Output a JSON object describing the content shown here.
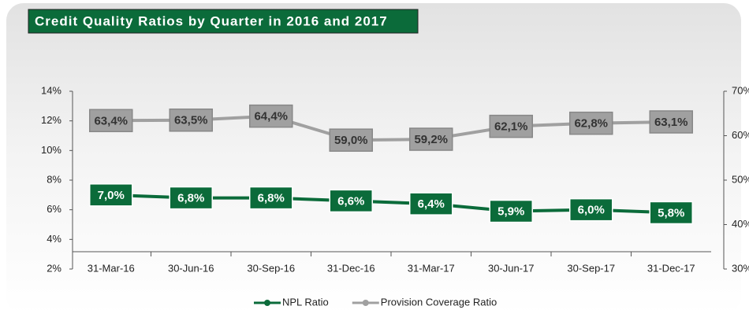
{
  "chart_data": {
    "type": "line",
    "title": "Credit Quality Ratios by Quarter in 2016 and 2017",
    "categories": [
      "31-Mar-16",
      "30-Jun-16",
      "30-Sep-16",
      "31-Dec-16",
      "31-Mar-17",
      "30-Jun-17",
      "30-Sep-17",
      "31-Dec-17"
    ],
    "series": [
      {
        "name": "NPL Ratio",
        "color": "#0b6b3a",
        "values": [
          7.0,
          6.8,
          6.8,
          6.6,
          6.4,
          5.9,
          6.0,
          5.8
        ],
        "value_labels": [
          "7,0%",
          "6,8%",
          "6,8%",
          "6,6%",
          "6,4%",
          "5,9%",
          "6,0%",
          "5,8%"
        ]
      },
      {
        "name": "Provision Coverage Ratio",
        "color": "#a0a0a0",
        "axis": "y2",
        "values": [
          63.4,
          63.5,
          64.4,
          59.0,
          59.2,
          62.1,
          62.8,
          63.1
        ],
        "value_labels": [
          "63,4%",
          "63,5%",
          "64,4%",
          "59,0%",
          "59,2%",
          "62,1%",
          "62,8%",
          "63,1%"
        ]
      }
    ],
    "ylim": [
      2,
      14
    ],
    "yticks": [
      {
        "value": 2,
        "label": "2%"
      },
      {
        "value": 4,
        "label": "4%"
      },
      {
        "value": 6,
        "label": "6%"
      },
      {
        "value": 8,
        "label": "8%"
      },
      {
        "value": 10,
        "label": "10%"
      },
      {
        "value": 12,
        "label": "12%"
      },
      {
        "value": 14,
        "label": "14%"
      }
    ],
    "y2lim": [
      30,
      70
    ],
    "y2ticks": [
      {
        "value": 30,
        "label": "30%"
      },
      {
        "value": 40,
        "label": "40%"
      },
      {
        "value": 50,
        "label": "50%"
      },
      {
        "value": 60,
        "label": "60%"
      },
      {
        "value": 70,
        "label": "70%"
      }
    ],
    "legend": "bottom"
  }
}
